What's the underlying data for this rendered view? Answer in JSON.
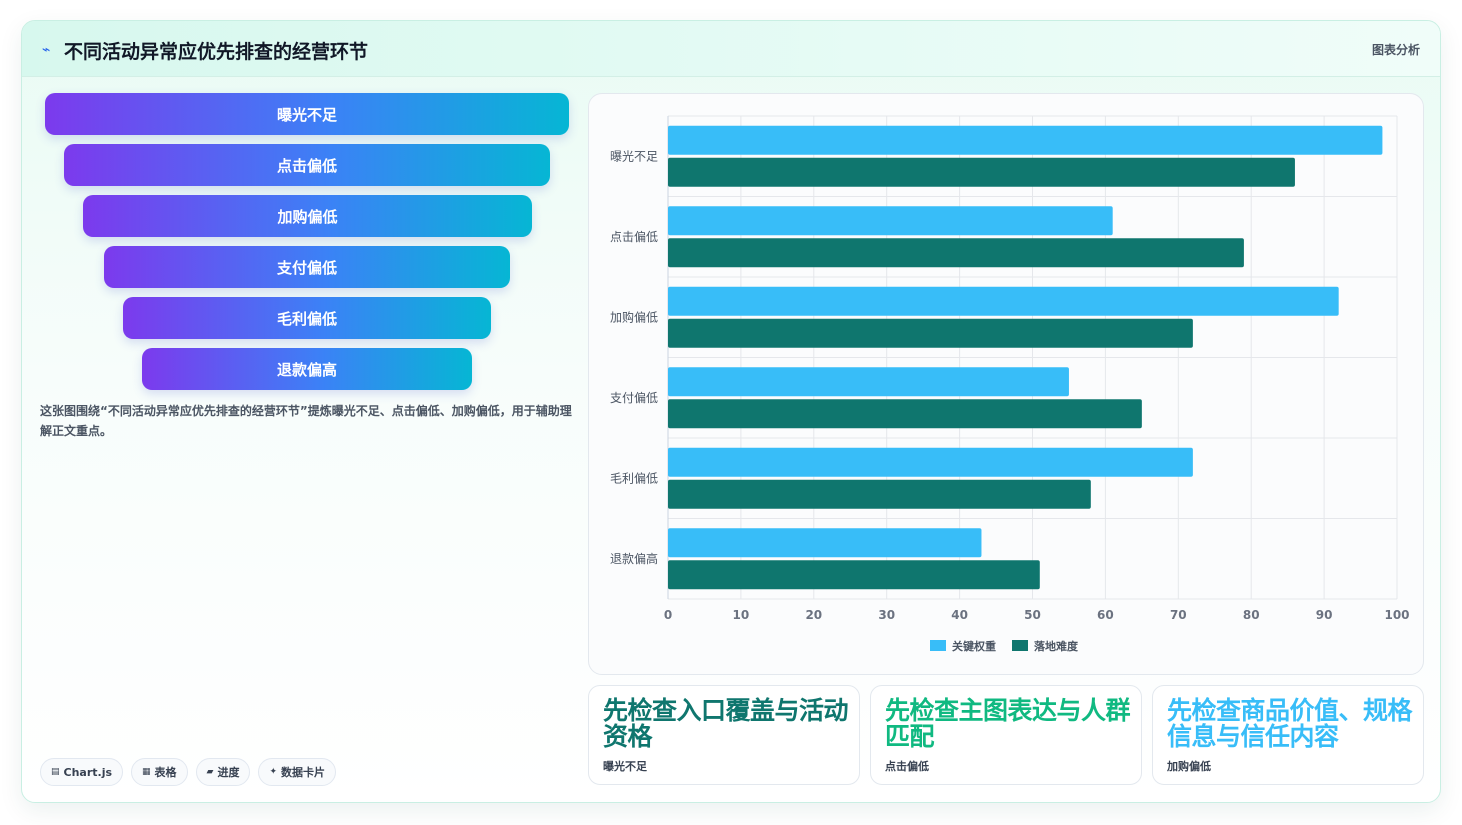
{
  "header": {
    "title": "不同活动异常应优先排查的经营环节",
    "tag": "图表分析",
    "logo_icon": "pulse-icon"
  },
  "funnel": {
    "steps": [
      "曝光不足",
      "点击偏低",
      "加购偏低",
      "支付偏低",
      "毛利偏低",
      "退款偏高"
    ],
    "colors": [
      "#7c3aed",
      "#06b6d4"
    ]
  },
  "description": "这张图围绕“不同活动异常应优先排查的经营环节”提炼曝光不足、点击偏低、加购偏低，用于辅助理解正文重点。",
  "chips": [
    {
      "icon": "chart-icon",
      "glyph": "▤",
      "label": "Chart.js"
    },
    {
      "icon": "table-icon",
      "glyph": "▦",
      "label": "表格"
    },
    {
      "icon": "progress-icon",
      "glyph": "▰",
      "label": "进度"
    },
    {
      "icon": "sparkle-icon",
      "glyph": "✦",
      "label": "数据卡片"
    }
  ],
  "chart_data": {
    "type": "bar",
    "orientation": "horizontal",
    "categories": [
      "曝光不足",
      "点击偏低",
      "加购偏低",
      "支付偏低",
      "毛利偏低",
      "退款偏高"
    ],
    "series": [
      {
        "name": "关键权重",
        "color": "#38bdf8",
        "values": [
          98,
          61,
          92,
          55,
          72,
          43
        ]
      },
      {
        "name": "落地难度",
        "color": "#0f766e",
        "values": [
          86,
          79,
          72,
          65,
          58,
          51
        ]
      }
    ],
    "xlim": [
      0,
      100
    ],
    "xticks": [
      0,
      10,
      20,
      30,
      40,
      50,
      60,
      70,
      80,
      90,
      100
    ],
    "grid": true,
    "legend": "bottom"
  },
  "kpis": [
    {
      "value": "先检查入口覆盖与活动资格",
      "label": "曝光不足",
      "color": "#0f766e"
    },
    {
      "value": "先检查主图表达与人群匹配",
      "label": "点击偏低",
      "color": "#10b981"
    },
    {
      "value": "先检查商品价值、规格信息与信任内容",
      "label": "加购偏低",
      "color": "#38bdf8"
    }
  ]
}
